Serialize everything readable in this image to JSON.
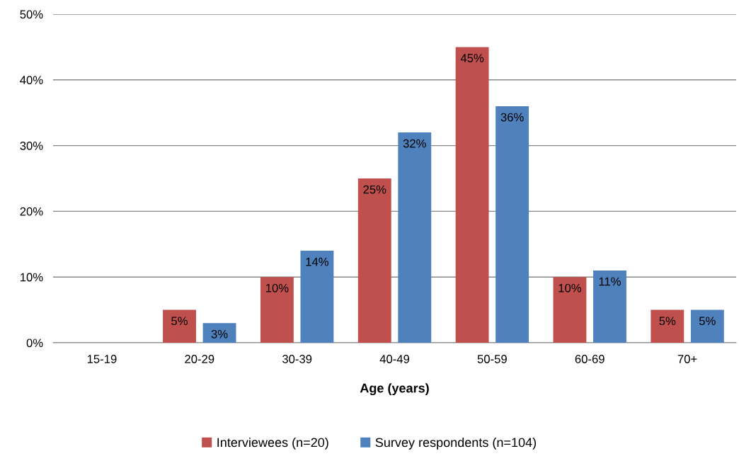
{
  "chart_data": {
    "type": "bar",
    "xlabel": "Age (years)",
    "categories": [
      "15-19",
      "20-29",
      "30-39",
      "40-49",
      "50-59",
      "60-69",
      "70+"
    ],
    "series": [
      {
        "name": "Interviewees (n=20)",
        "color": "#c0504d",
        "values": [
          0,
          5,
          10,
          25,
          45,
          10,
          5
        ],
        "value_labels": [
          null,
          "5%",
          "10%",
          "25%",
          "45%",
          "10%",
          "5%"
        ]
      },
      {
        "name": "Survey respondents (n=104)",
        "color": "#4f81bd",
        "values": [
          0,
          3,
          14,
          32,
          36,
          11,
          5
        ],
        "value_labels": [
          null,
          "3%",
          "14%",
          "32%",
          "36%",
          "11%",
          "5%"
        ]
      }
    ],
    "ylim": [
      0,
      50
    ],
    "yticks": [
      {
        "value": 0,
        "label": "0%"
      },
      {
        "value": 10,
        "label": "10%"
      },
      {
        "value": 20,
        "label": "20%"
      },
      {
        "value": 30,
        "label": "30%"
      },
      {
        "value": 40,
        "label": "40%"
      },
      {
        "value": 50,
        "label": "50%"
      }
    ],
    "grid": "y",
    "legend": "bottom"
  }
}
